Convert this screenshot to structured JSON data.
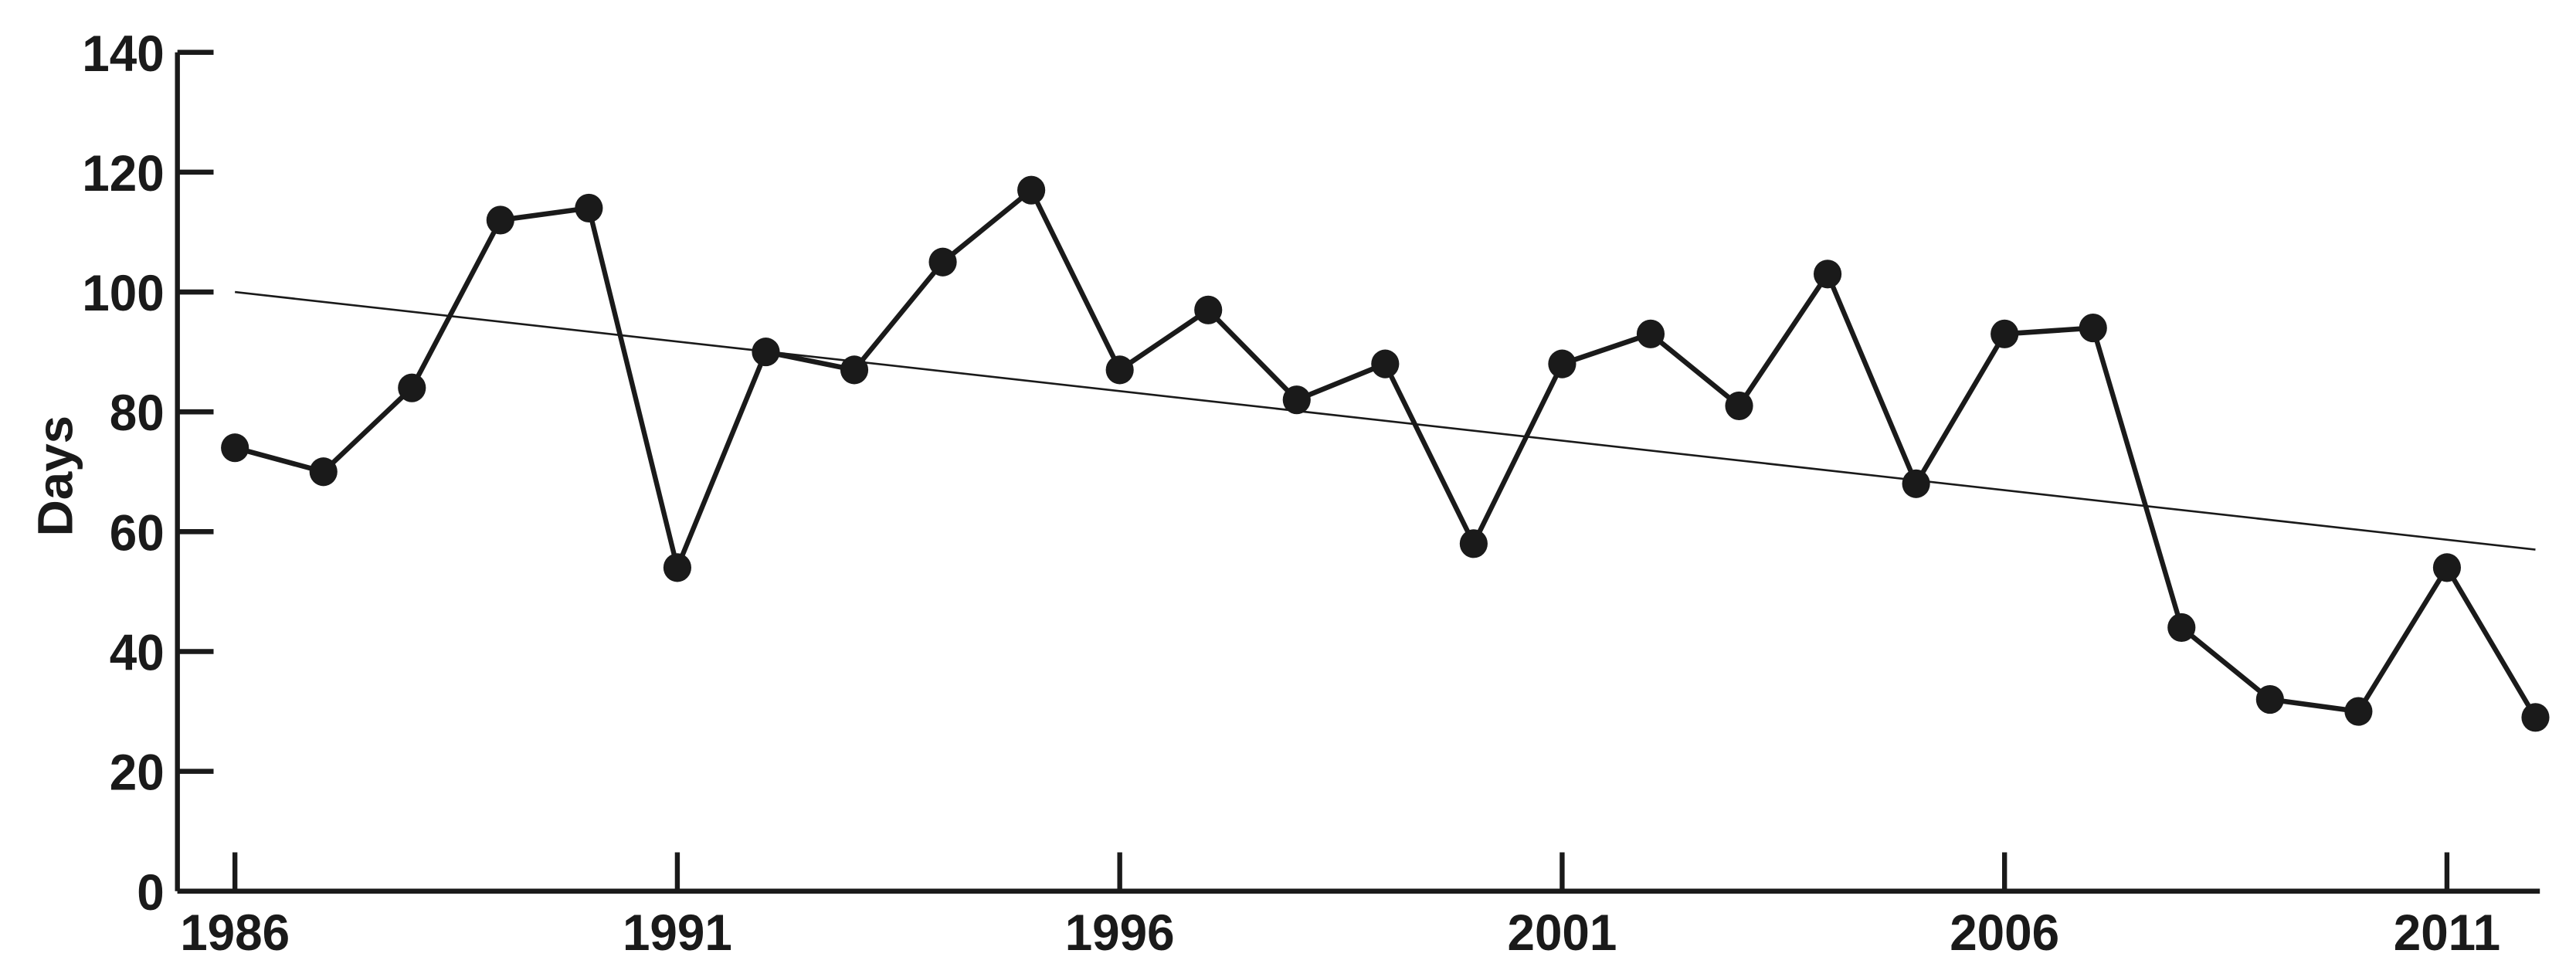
{
  "chart_data": {
    "type": "line",
    "y_label": "Days",
    "x": [
      1986,
      1987,
      1988,
      1989,
      1990,
      1991,
      1992,
      1993,
      1994,
      1995,
      1996,
      1997,
      1998,
      1999,
      2000,
      2001,
      2002,
      2003,
      2004,
      2005,
      2006,
      2007,
      2008,
      2009,
      2010,
      2011,
      2012
    ],
    "values": [
      74,
      70,
      84,
      112,
      114,
      54,
      90,
      87,
      105,
      117,
      87,
      97,
      82,
      88,
      58,
      88,
      93,
      81,
      103,
      68,
      93,
      94,
      44,
      32,
      30,
      54,
      29
    ],
    "color": "#1a1a1a",
    "trend": {
      "x": [
        1986,
        2012
      ],
      "values": [
        100,
        57
      ]
    },
    "xlim": [
      1985.35,
      2012.05
    ],
    "xticks": [
      1986,
      1991,
      1996,
      2001,
      2006,
      2011
    ],
    "ylim": [
      0,
      140
    ],
    "yticks": [
      0,
      20,
      40,
      60,
      80,
      100,
      120,
      140
    ],
    "grid": false
  }
}
